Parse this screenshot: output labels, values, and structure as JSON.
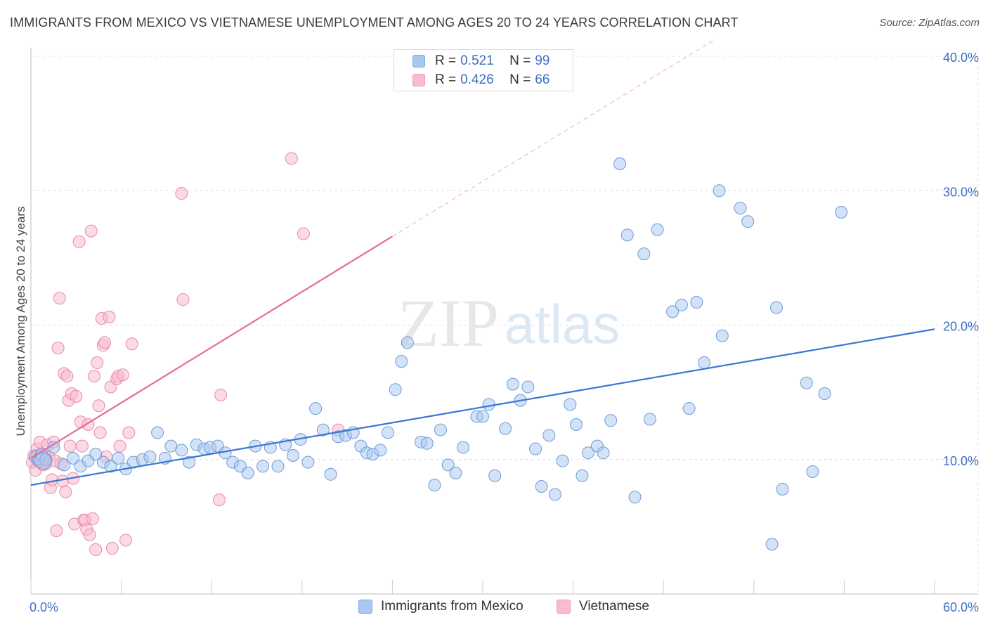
{
  "title": "IMMIGRANTS FROM MEXICO VS VIETNAMESE UNEMPLOYMENT AMONG AGES 20 TO 24 YEARS CORRELATION CHART",
  "source": "Source: ZipAtlas.com",
  "watermark": {
    "zip": "ZIP",
    "atlas": "atlas"
  },
  "legend_box": {
    "rows": [
      {
        "r_label": "R =",
        "r_value": "0.521",
        "n_label": "N =",
        "n_value": "99",
        "color": "#a8c8f0",
        "border": "#7aa6e0"
      },
      {
        "r_label": "R =",
        "r_value": "0.426",
        "n_label": "N =",
        "n_value": "66",
        "color": "#f8bcd0",
        "border": "#e898b4"
      }
    ]
  },
  "bottom_legend": [
    {
      "label": "Immigrants from Mexico",
      "color": "#a8c8f0",
      "border": "#7aa6e0"
    },
    {
      "label": "Vietnamese",
      "color": "#f8bcd0",
      "border": "#e898b4"
    }
  ],
  "chart_data": {
    "type": "scatter",
    "ylabel": "Unemployment Among Ages 20 to 24 years",
    "xlabel": "",
    "xlim": [
      0,
      60
    ],
    "ylim": [
      0,
      40
    ],
    "x_tick_labels": [
      {
        "value": 0,
        "label": "0.0%"
      },
      {
        "value": 60,
        "label": "60.0%"
      }
    ],
    "y_tick_labels": [
      {
        "value": 10,
        "label": "10.0%"
      },
      {
        "value": 20,
        "label": "20.0%"
      },
      {
        "value": 30,
        "label": "30.0%"
      },
      {
        "value": 40,
        "label": "40.0%"
      }
    ],
    "grid": true,
    "series": [
      {
        "name": "Immigrants from Mexico",
        "color": "#a8c8f0",
        "stroke": "#6f9ad8",
        "trend_color": "#3a77d0",
        "trend": {
          "x0": 0,
          "y0": 8.1,
          "x1": 60,
          "y1": 19.7
        },
        "points": [
          [
            0.3,
            10.2
          ],
          [
            0.5,
            10.0
          ],
          [
            0.7,
            10.4
          ],
          [
            1.0,
            10.0
          ],
          [
            1.5,
            10.9
          ],
          [
            2.2,
            9.6
          ],
          [
            2.8,
            10.1
          ],
          [
            3.3,
            9.5
          ],
          [
            3.8,
            9.9
          ],
          [
            4.3,
            10.4
          ],
          [
            4.8,
            9.8
          ],
          [
            5.3,
            9.5
          ],
          [
            5.8,
            10.1
          ],
          [
            6.3,
            9.3
          ],
          [
            6.8,
            9.8
          ],
          [
            7.4,
            10.0
          ],
          [
            7.9,
            10.2
          ],
          [
            8.4,
            12.0
          ],
          [
            8.9,
            10.1
          ],
          [
            9.3,
            11.0
          ],
          [
            10.0,
            10.7
          ],
          [
            10.5,
            9.8
          ],
          [
            11.0,
            11.1
          ],
          [
            11.5,
            10.8
          ],
          [
            11.9,
            10.9
          ],
          [
            12.4,
            11.0
          ],
          [
            12.9,
            10.5
          ],
          [
            13.4,
            9.8
          ],
          [
            13.9,
            9.5
          ],
          [
            14.4,
            9.0
          ],
          [
            14.9,
            11.0
          ],
          [
            15.4,
            9.5
          ],
          [
            15.9,
            10.9
          ],
          [
            16.4,
            9.5
          ],
          [
            16.9,
            11.1
          ],
          [
            17.4,
            10.3
          ],
          [
            17.9,
            11.5
          ],
          [
            18.4,
            9.8
          ],
          [
            18.9,
            13.8
          ],
          [
            19.4,
            12.2
          ],
          [
            19.9,
            8.9
          ],
          [
            20.4,
            11.7
          ],
          [
            20.9,
            11.8
          ],
          [
            21.4,
            12.0
          ],
          [
            21.9,
            11.0
          ],
          [
            22.3,
            10.5
          ],
          [
            22.7,
            10.4
          ],
          [
            23.2,
            10.7
          ],
          [
            23.7,
            12.0
          ],
          [
            24.2,
            15.2
          ],
          [
            24.6,
            17.3
          ],
          [
            25.0,
            18.7
          ],
          [
            25.9,
            11.3
          ],
          [
            26.3,
            11.2
          ],
          [
            26.8,
            8.1
          ],
          [
            27.2,
            12.2
          ],
          [
            27.7,
            9.6
          ],
          [
            28.2,
            9.0
          ],
          [
            28.7,
            10.9
          ],
          [
            29.6,
            13.2
          ],
          [
            30.0,
            13.2
          ],
          [
            30.4,
            14.1
          ],
          [
            30.8,
            8.8
          ],
          [
            31.5,
            12.3
          ],
          [
            32.0,
            15.6
          ],
          [
            32.5,
            14.4
          ],
          [
            33.0,
            15.4
          ],
          [
            33.5,
            10.8
          ],
          [
            33.9,
            8.0
          ],
          [
            34.4,
            11.8
          ],
          [
            34.8,
            7.4
          ],
          [
            35.3,
            9.9
          ],
          [
            35.8,
            14.1
          ],
          [
            36.2,
            12.6
          ],
          [
            36.6,
            8.8
          ],
          [
            37.0,
            10.5
          ],
          [
            37.6,
            11.0
          ],
          [
            38.0,
            10.5
          ],
          [
            38.5,
            12.9
          ],
          [
            39.1,
            32.0
          ],
          [
            39.6,
            26.7
          ],
          [
            40.1,
            7.2
          ],
          [
            40.7,
            25.3
          ],
          [
            41.1,
            13.0
          ],
          [
            41.6,
            27.1
          ],
          [
            42.6,
            21.0
          ],
          [
            43.2,
            21.5
          ],
          [
            43.7,
            13.8
          ],
          [
            44.2,
            21.7
          ],
          [
            44.7,
            17.2
          ],
          [
            45.7,
            30.0
          ],
          [
            45.9,
            19.2
          ],
          [
            47.1,
            28.7
          ],
          [
            47.6,
            27.7
          ],
          [
            49.2,
            3.7
          ],
          [
            49.5,
            21.3
          ],
          [
            49.9,
            7.8
          ],
          [
            51.5,
            15.7
          ],
          [
            51.9,
            9.1
          ],
          [
            52.7,
            14.9
          ],
          [
            53.8,
            28.4
          ]
        ]
      },
      {
        "name": "Vietnamese",
        "color": "#f8bcd0",
        "stroke": "#e88aac",
        "trend_color": "#e86a98",
        "trend": {
          "x0": 0,
          "y0": 10.1,
          "x1": 24.0,
          "y1": 26.6
        },
        "trend_extension": {
          "x0": 24.0,
          "y0": 26.6,
          "x1": 45.5,
          "y1": 41.3
        },
        "points": [
          [
            0.1,
            9.8
          ],
          [
            0.2,
            10.3
          ],
          [
            0.3,
            9.2
          ],
          [
            0.4,
            10.8
          ],
          [
            0.5,
            9.9
          ],
          [
            0.6,
            11.3
          ],
          [
            0.7,
            10.0
          ],
          [
            0.8,
            9.6
          ],
          [
            0.9,
            10.4
          ],
          [
            1.0,
            9.7
          ],
          [
            1.1,
            11.1
          ],
          [
            1.2,
            10.2
          ],
          [
            1.3,
            7.9
          ],
          [
            1.4,
            8.5
          ],
          [
            1.5,
            11.3
          ],
          [
            1.6,
            9.9
          ],
          [
            1.7,
            4.7
          ],
          [
            1.8,
            18.3
          ],
          [
            1.9,
            22.0
          ],
          [
            2.0,
            9.7
          ],
          [
            2.1,
            8.4
          ],
          [
            2.2,
            16.4
          ],
          [
            2.3,
            7.6
          ],
          [
            2.4,
            16.2
          ],
          [
            2.5,
            14.4
          ],
          [
            2.6,
            11.0
          ],
          [
            2.7,
            14.9
          ],
          [
            2.8,
            8.6
          ],
          [
            2.9,
            5.2
          ],
          [
            3.0,
            14.7
          ],
          [
            3.2,
            26.2
          ],
          [
            3.3,
            12.8
          ],
          [
            3.4,
            11.0
          ],
          [
            3.5,
            5.5
          ],
          [
            3.6,
            5.5
          ],
          [
            3.7,
            4.8
          ],
          [
            3.8,
            12.6
          ],
          [
            3.9,
            4.4
          ],
          [
            4.0,
            27.0
          ],
          [
            4.1,
            5.6
          ],
          [
            4.2,
            16.2
          ],
          [
            4.3,
            3.3
          ],
          [
            4.4,
            17.2
          ],
          [
            4.5,
            14.0
          ],
          [
            4.6,
            12.0
          ],
          [
            4.7,
            20.5
          ],
          [
            4.8,
            18.5
          ],
          [
            4.9,
            18.7
          ],
          [
            5.0,
            10.2
          ],
          [
            5.2,
            20.6
          ],
          [
            5.3,
            15.4
          ],
          [
            5.4,
            3.4
          ],
          [
            5.7,
            16.0
          ],
          [
            5.8,
            16.2
          ],
          [
            5.9,
            11.0
          ],
          [
            6.1,
            16.3
          ],
          [
            6.3,
            4.0
          ],
          [
            6.5,
            12.0
          ],
          [
            6.7,
            18.6
          ],
          [
            10.0,
            29.8
          ],
          [
            10.1,
            21.9
          ],
          [
            12.5,
            7.0
          ],
          [
            12.6,
            14.8
          ],
          [
            17.3,
            32.4
          ],
          [
            18.1,
            26.8
          ],
          [
            20.4,
            12.2
          ]
        ]
      }
    ]
  }
}
